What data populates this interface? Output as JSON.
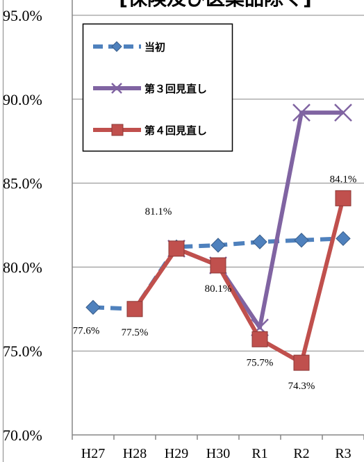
{
  "chart_data": {
    "type": "line",
    "title": "[保険及び医薬品除く]",
    "categories": [
      "H27",
      "H28",
      "H29",
      "H30",
      "R1",
      "R2",
      "R3"
    ],
    "ylim": [
      70.0,
      95.0
    ],
    "ytick_step": 5.0,
    "ytick_labels": [
      "70.0%",
      "75.0%",
      "80.0%",
      "85.0%",
      "90.0%",
      "95.0%"
    ],
    "grid": "horizontal",
    "legend_position": "top-left",
    "series": [
      {
        "name": "当初",
        "color": "#4f81bd",
        "line_style": "dashed",
        "marker": "diamond",
        "values": [
          77.6,
          77.5,
          81.2,
          81.3,
          81.5,
          81.6,
          81.7
        ]
      },
      {
        "name": "第３回見直し",
        "color": "#8064a2",
        "line_style": "solid",
        "marker": "x",
        "values": [
          null,
          null,
          81.1,
          80.1,
          76.4,
          89.2,
          89.2
        ]
      },
      {
        "name": "第４回見直し",
        "color": "#c0504d",
        "line_style": "solid",
        "marker": "square",
        "values": [
          null,
          77.5,
          81.1,
          80.1,
          75.7,
          74.3,
          84.1
        ]
      }
    ],
    "data_labels": [
      {
        "category": "H27",
        "text": "77.6%",
        "value": 77.6,
        "placement": "below"
      },
      {
        "category": "H28",
        "text": "77.5%",
        "value": 77.5,
        "placement": "below"
      },
      {
        "category": "H29",
        "text": "81.1%",
        "value": 81.1,
        "placement": "above-left"
      },
      {
        "category": "H30",
        "text": "80.1%",
        "value": 80.1,
        "placement": "below"
      },
      {
        "category": "R1",
        "text": "75.7%",
        "value": 75.7,
        "placement": "below"
      },
      {
        "category": "R2",
        "text": "74.3%",
        "value": 74.3,
        "placement": "below"
      },
      {
        "category": "R3",
        "text": "84.1%",
        "value": 84.1,
        "placement": "above"
      }
    ]
  }
}
